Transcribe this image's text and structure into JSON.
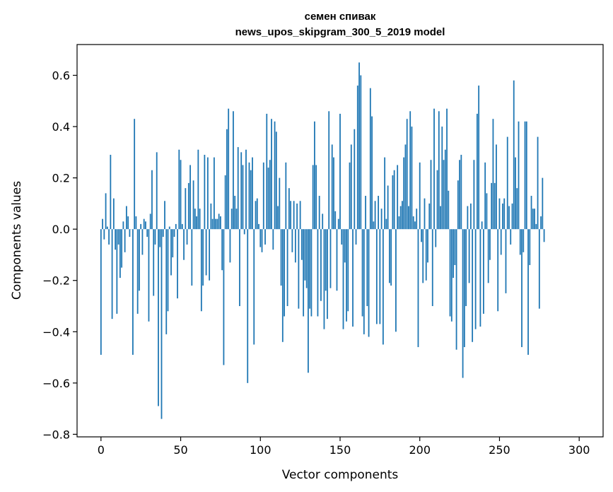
{
  "chart_data": {
    "type": "bar",
    "title_lines": [
      "семен спивак",
      "news_upos_skipgram_300_5_2019 model"
    ],
    "xlabel": "Vector components",
    "ylabel": "Components values",
    "xlim": [
      -15,
      315
    ],
    "ylim": [
      -0.81,
      0.72
    ],
    "x_ticks": [
      0,
      50,
      100,
      150,
      200,
      250,
      300
    ],
    "x_tick_labels": [
      "0",
      "50",
      "100",
      "150",
      "200",
      "250",
      "300"
    ],
    "y_ticks": [
      -0.8,
      -0.6,
      -0.4,
      -0.2,
      0.0,
      0.2,
      0.4,
      0.6
    ],
    "y_tick_labels": [
      "−0.8",
      "−0.6",
      "−0.4",
      "−0.2",
      "0.0",
      "0.2",
      "0.4",
      "0.6"
    ],
    "bar_color": "#1f77b4",
    "bar_width": 0.8,
    "values": [
      -0.49,
      0.04,
      -0.04,
      0.14,
      0.01,
      -0.06,
      0.29,
      -0.35,
      0.12,
      -0.08,
      -0.33,
      -0.06,
      -0.19,
      -0.15,
      0.03,
      -0.09,
      0.09,
      0.05,
      -0.03,
      0.0,
      -0.49,
      0.43,
      0.05,
      -0.33,
      -0.24,
      0.02,
      -0.1,
      0.04,
      0.03,
      -0.03,
      -0.36,
      0.06,
      0.23,
      -0.26,
      -0.06,
      0.3,
      -0.69,
      -0.07,
      -0.74,
      -0.03,
      0.11,
      -0.41,
      -0.32,
      0.01,
      -0.18,
      -0.11,
      -0.03,
      0.02,
      -0.27,
      0.31,
      0.27,
      0.02,
      -0.12,
      0.16,
      -0.06,
      0.18,
      0.25,
      -0.22,
      0.19,
      0.08,
      0.05,
      0.31,
      0.08,
      -0.32,
      -0.22,
      0.29,
      -0.18,
      0.28,
      -0.2,
      0.1,
      0.04,
      0.28,
      0.04,
      0.04,
      0.06,
      0.05,
      -0.16,
      -0.53,
      0.21,
      0.39,
      0.47,
      -0.13,
      0.08,
      0.46,
      0.13,
      0.08,
      0.32,
      -0.3,
      0.3,
      0.25,
      -0.02,
      0.31,
      -0.6,
      0.26,
      0.23,
      0.28,
      -0.45,
      0.11,
      0.12,
      0.02,
      -0.07,
      -0.09,
      0.26,
      -0.06,
      0.45,
      0.24,
      0.27,
      0.43,
      -0.08,
      0.42,
      0.38,
      0.09,
      0.2,
      -0.22,
      -0.44,
      -0.34,
      0.26,
      -0.3,
      0.16,
      0.11,
      -0.09,
      0.11,
      -0.13,
      0.1,
      -0.31,
      0.11,
      -0.12,
      -0.34,
      -0.2,
      -0.23,
      -0.56,
      -0.31,
      -0.34,
      0.25,
      0.42,
      0.25,
      -0.34,
      0.13,
      -0.28,
      0.06,
      -0.39,
      -0.24,
      -0.35,
      0.46,
      -0.23,
      0.33,
      0.28,
      0.07,
      -0.24,
      0.04,
      0.45,
      -0.06,
      -0.39,
      -0.13,
      -0.36,
      -0.32,
      0.26,
      0.33,
      -0.38,
      0.39,
      -0.06,
      0.56,
      0.65,
      0.6,
      -0.34,
      -0.41,
      0.13,
      -0.3,
      -0.42,
      0.55,
      0.44,
      0.03,
      0.11,
      -0.37,
      0.13,
      -0.37,
      0.08,
      -0.45,
      0.28,
      0.04,
      0.17,
      -0.21,
      -0.22,
      0.21,
      0.23,
      -0.4,
      0.25,
      0.05,
      0.09,
      0.11,
      0.28,
      0.33,
      0.43,
      0.09,
      0.46,
      0.4,
      0.05,
      0.03,
      0.08,
      -0.46,
      0.26,
      -0.05,
      -0.21,
      0.12,
      -0.2,
      -0.13,
      0.1,
      0.27,
      -0.3,
      0.47,
      -0.07,
      0.23,
      0.46,
      0.09,
      0.4,
      0.27,
      0.31,
      0.47,
      0.15,
      -0.34,
      -0.36,
      -0.19,
      -0.14,
      -0.47,
      0.19,
      0.27,
      0.29,
      -0.58,
      -0.46,
      -0.3,
      0.09,
      -0.21,
      0.1,
      -0.44,
      0.27,
      -0.39,
      0.45,
      0.56,
      -0.38,
      0.03,
      -0.33,
      0.26,
      0.14,
      -0.21,
      -0.12,
      0.18,
      0.43,
      0.18,
      0.33,
      -0.32,
      0.12,
      -0.1,
      0.1,
      0.12,
      -0.25,
      0.36,
      0.09,
      -0.06,
      0.1,
      0.58,
      0.28,
      0.16,
      0.42,
      -0.1,
      -0.46,
      -0.09,
      0.42,
      0.42,
      -0.49,
      -0.14,
      0.13,
      0.08,
      0.08,
      0.02,
      0.36,
      -0.31,
      0.05,
      0.2,
      -0.05
    ]
  }
}
